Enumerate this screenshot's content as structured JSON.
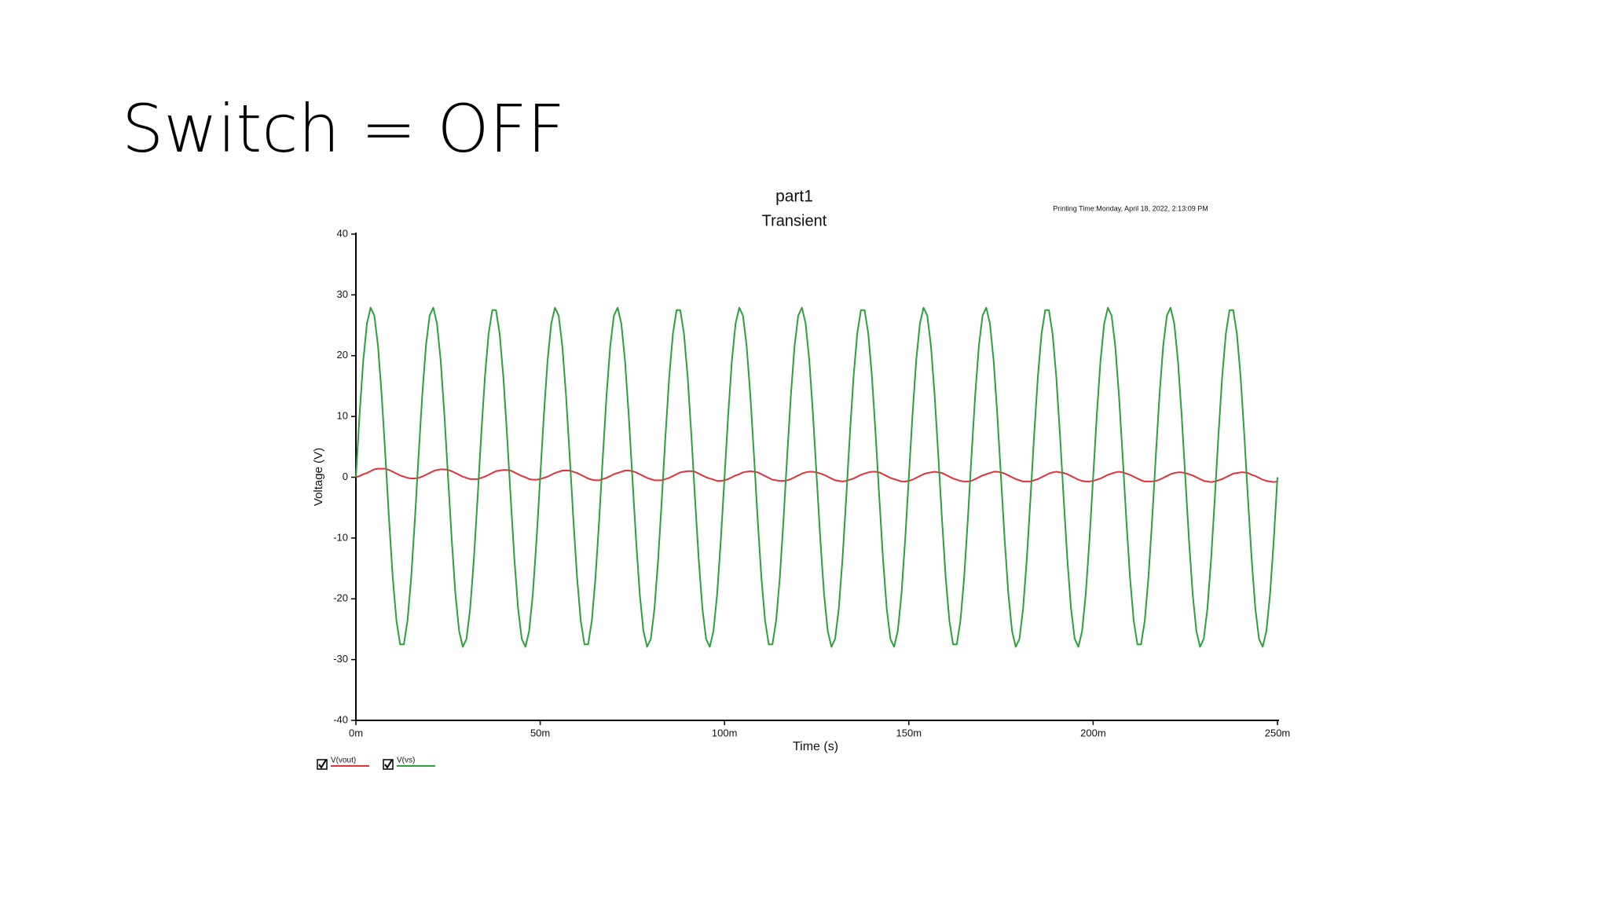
{
  "title": "Switch = OFF",
  "chart_data": {
    "type": "line",
    "title": "part1",
    "subtitle": "Transient",
    "annotation": "Printing Time:Monday, April 18, 2022, 2:13:09 PM",
    "xlabel": "Time (s)",
    "ylabel": "Voltage (V)",
    "x": [
      0,
      0.001,
      0.002,
      0.003,
      0.004,
      0.005,
      0.006,
      0.007,
      0.008,
      0.009,
      0.01,
      0.011,
      0.012,
      0.013,
      0.014,
      0.015,
      0.016,
      0.017,
      0.018,
      0.019,
      0.02,
      0.021,
      0.022,
      0.023,
      0.024,
      0.025,
      0.026,
      0.027,
      0.028,
      0.029,
      0.03,
      0.031,
      0.032,
      0.033,
      0.034,
      0.035,
      0.036,
      0.037,
      0.038,
      0.039,
      0.04,
      0.041,
      0.042,
      0.043,
      0.044,
      0.045,
      0.046,
      0.047,
      0.048,
      0.049,
      0.05,
      0.051,
      0.052,
      0.053,
      0.054,
      0.055,
      0.056,
      0.057,
      0.058,
      0.059,
      0.06,
      0.061,
      0.062,
      0.063,
      0.064,
      0.065,
      0.066,
      0.067,
      0.068,
      0.069,
      0.07,
      0.071,
      0.072,
      0.073,
      0.074,
      0.075,
      0.076,
      0.077,
      0.078,
      0.079,
      0.08,
      0.081,
      0.082,
      0.083,
      0.084,
      0.085,
      0.086,
      0.087,
      0.088,
      0.089,
      0.09,
      0.091,
      0.092,
      0.093,
      0.094,
      0.095,
      0.096,
      0.097,
      0.098,
      0.099,
      0.1,
      0.101,
      0.102,
      0.103,
      0.104,
      0.105,
      0.106,
      0.107,
      0.108,
      0.109,
      0.11,
      0.111,
      0.112,
      0.113,
      0.114,
      0.115,
      0.116,
      0.117,
      0.118,
      0.119,
      0.12,
      0.121,
      0.122,
      0.123,
      0.124,
      0.125,
      0.126,
      0.127,
      0.128,
      0.129,
      0.13,
      0.131,
      0.132,
      0.133,
      0.134,
      0.135,
      0.136,
      0.137,
      0.138,
      0.139,
      0.14,
      0.141,
      0.142,
      0.143,
      0.144,
      0.145,
      0.146,
      0.147,
      0.148,
      0.149,
      0.15,
      0.151,
      0.152,
      0.153,
      0.154,
      0.155,
      0.156,
      0.157,
      0.158,
      0.159,
      0.16,
      0.161,
      0.162,
      0.163,
      0.164,
      0.165,
      0.166,
      0.167,
      0.168,
      0.169,
      0.17,
      0.171,
      0.172,
      0.173,
      0.174,
      0.175,
      0.176,
      0.177,
      0.178,
      0.179,
      0.18,
      0.181,
      0.182,
      0.183,
      0.184,
      0.185,
      0.186,
      0.187,
      0.188,
      0.189,
      0.19,
      0.191,
      0.192,
      0.193,
      0.194,
      0.195,
      0.196,
      0.197,
      0.198,
      0.199,
      0.2,
      0.201,
      0.202,
      0.203,
      0.204,
      0.205,
      0.206,
      0.207,
      0.208,
      0.209,
      0.21,
      0.211,
      0.212,
      0.213,
      0.214,
      0.215,
      0.216,
      0.217,
      0.218,
      0.219,
      0.22,
      0.221,
      0.222,
      0.223,
      0.224,
      0.225,
      0.226,
      0.227,
      0.228,
      0.229,
      0.23,
      0.231,
      0.232,
      0.233,
      0.234,
      0.235,
      0.236,
      0.237,
      0.238,
      0.239,
      0.24,
      0.241,
      0.242,
      0.243,
      0.244,
      0.245,
      0.246,
      0.247,
      0.248,
      0.249,
      0.25
    ],
    "series": [
      {
        "name": "V(vout)",
        "color": "#e0323c",
        "values": [
          0,
          0.2,
          0.5,
          0.7,
          1,
          1.3,
          1.4,
          1.4,
          1.4,
          1.2,
          0.9,
          0.6,
          0.3,
          0.1,
          -0.1,
          -0.2,
          -0.2,
          -0.1,
          0.1,
          0.4,
          0.7,
          1,
          1.2,
          1.3,
          1.3,
          1.2,
          1,
          0.7,
          0.4,
          0.1,
          -0.1,
          -0.3,
          -0.3,
          -0.3,
          -0.1,
          0.1,
          0.4,
          0.7,
          1,
          1.1,
          1.2,
          1.2,
          1.1,
          0.8,
          0.5,
          0.2,
          0,
          -0.3,
          -0.4,
          -0.4,
          -0.3,
          -0.1,
          0.1,
          0.4,
          0.7,
          0.9,
          1.1,
          1.1,
          1.1,
          0.9,
          0.7,
          0.4,
          0.1,
          -0.2,
          -0.4,
          -0.5,
          -0.5,
          -0.3,
          -0.1,
          0.2,
          0.5,
          0.7,
          0.9,
          1.1,
          1.1,
          1,
          0.8,
          0.5,
          0.2,
          -0.1,
          -0.3,
          -0.5,
          -0.5,
          -0.5,
          -0.3,
          -0.1,
          0.2,
          0.5,
          0.8,
          0.9,
          1,
          1,
          0.9,
          0.6,
          0.3,
          0,
          -0.2,
          -0.4,
          -0.6,
          -0.6,
          -0.5,
          -0.3,
          0,
          0.3,
          0.5,
          0.8,
          0.9,
          1,
          0.9,
          0.8,
          0.5,
          0.2,
          -0.1,
          -0.4,
          -0.5,
          -0.6,
          -0.6,
          -0.5,
          -0.3,
          0,
          0.3,
          0.6,
          0.8,
          0.9,
          0.9,
          0.8,
          0.6,
          0.4,
          0.1,
          -0.2,
          -0.5,
          -0.6,
          -0.7,
          -0.6,
          -0.4,
          -0.2,
          0.1,
          0.4,
          0.6,
          0.8,
          0.9,
          0.9,
          0.8,
          0.5,
          0.2,
          -0.1,
          -0.3,
          -0.5,
          -0.7,
          -0.7,
          -0.6,
          -0.4,
          -0.1,
          0.2,
          0.5,
          0.7,
          0.8,
          0.9,
          0.8,
          0.7,
          0.4,
          0.1,
          -0.2,
          -0.4,
          -0.6,
          -0.7,
          -0.7,
          -0.6,
          -0.3,
          0,
          0.3,
          0.5,
          0.7,
          0.9,
          0.9,
          0.8,
          0.6,
          0.3,
          0,
          -0.3,
          -0.5,
          -0.7,
          -0.7,
          -0.7,
          -0.5,
          -0.3,
          0,
          0.3,
          0.6,
          0.8,
          0.9,
          0.8,
          0.7,
          0.5,
          0.2,
          -0.1,
          -0.4,
          -0.6,
          -0.7,
          -0.7,
          -0.6,
          -0.4,
          -0.2,
          0.1,
          0.4,
          0.6,
          0.8,
          0.9,
          0.8,
          0.6,
          0.4,
          0.1,
          -0.2,
          -0.5,
          -0.7,
          -0.7,
          -0.7,
          -0.6,
          -0.4,
          -0.1,
          0.2,
          0.5,
          0.7,
          0.8,
          0.8,
          0.7,
          0.5,
          0.3,
          0,
          -0.3,
          -0.6,
          -0.7,
          -0.8,
          -0.7,
          -0.5,
          -0.3,
          0,
          0.3,
          0.6,
          0.7,
          0.8,
          0.8,
          0.7,
          0.4,
          0.2,
          -0.1,
          -0.4,
          -0.6,
          -0.7,
          -0.8,
          -0.7
        ]
      },
      {
        "name": "V(vs)",
        "color": "#2ca03a",
        "values": [
          0,
          10.3,
          19.2,
          25.3,
          27.9,
          26.6,
          21.6,
          13.5,
          3.5,
          -7,
          -16.5,
          -23.6,
          -27.5,
          -27.5,
          -23.6,
          -16.5,
          -7,
          3.5,
          13.5,
          21.6,
          26.6,
          27.9,
          25.3,
          19.2,
          10.3,
          0,
          -10.3,
          -19.2,
          -25.3,
          -27.9,
          -26.6,
          -21.6,
          -13.5,
          -3.5,
          7,
          16.5,
          23.6,
          27.5,
          27.5,
          23.6,
          16.5,
          7,
          -3.5,
          -13.5,
          -21.6,
          -26.6,
          -27.9,
          -25.3,
          -19.2,
          -10.3,
          0,
          10.3,
          19.2,
          25.3,
          27.9,
          26.6,
          21.6,
          13.5,
          3.5,
          -7,
          -16.5,
          -23.6,
          -27.5,
          -27.5,
          -23.6,
          -16.5,
          -7,
          3.5,
          13.5,
          21.6,
          26.6,
          27.9,
          25.3,
          19.2,
          10.3,
          0,
          -10.3,
          -19.2,
          -25.3,
          -27.9,
          -26.6,
          -21.6,
          -13.5,
          -3.5,
          7,
          16.5,
          23.6,
          27.5,
          27.5,
          23.6,
          16.5,
          7,
          -3.5,
          -13.5,
          -21.6,
          -26.6,
          -27.9,
          -25.3,
          -19.2,
          -10.3,
          0,
          10.3,
          19.2,
          25.3,
          27.9,
          26.6,
          21.6,
          13.5,
          3.5,
          -7,
          -16.5,
          -23.6,
          -27.5,
          -27.5,
          -23.6,
          -16.5,
          -7,
          3.5,
          13.5,
          21.6,
          26.6,
          27.9,
          25.3,
          19.2,
          10.3,
          0,
          -10.3,
          -19.2,
          -25.3,
          -27.9,
          -26.6,
          -21.6,
          -13.5,
          -3.5,
          7,
          16.5,
          23.6,
          27.5,
          27.5,
          23.6,
          16.5,
          7,
          -3.5,
          -13.5,
          -21.6,
          -26.6,
          -27.9,
          -25.3,
          -19.2,
          -10.3,
          0,
          10.3,
          19.2,
          25.3,
          27.9,
          26.6,
          21.6,
          13.5,
          3.5,
          -7,
          -16.5,
          -23.6,
          -27.5,
          -27.5,
          -23.6,
          -16.5,
          -7,
          3.5,
          13.5,
          21.6,
          26.6,
          27.9,
          25.3,
          19.2,
          10.3,
          0,
          -10.3,
          -19.2,
          -25.3,
          -27.9,
          -26.6,
          -21.6,
          -13.5,
          -3.5,
          7,
          16.5,
          23.6,
          27.5,
          27.5,
          23.6,
          16.5,
          7,
          -3.5,
          -13.5,
          -21.6,
          -26.6,
          -27.9,
          -25.3,
          -19.2,
          -10.3,
          0,
          10.3,
          19.2,
          25.3,
          27.9,
          26.6,
          21.6,
          13.5,
          3.5,
          -7,
          -16.5,
          -23.6,
          -27.5,
          -27.5,
          -23.6,
          -16.5,
          -7,
          3.5,
          13.5,
          21.6,
          26.6,
          27.9,
          25.3,
          19.2,
          10.3,
          0,
          -10.3,
          -19.2,
          -25.3,
          -27.9,
          -26.6,
          -21.6,
          -13.5,
          -3.5,
          7,
          16.5,
          23.6,
          27.5,
          27.5,
          23.6,
          16.5,
          7,
          -3.5,
          -13.5,
          -21.6,
          -26.6,
          -27.9,
          -25.3,
          -19.2,
          -10.3,
          0
        ]
      }
    ],
    "xlim": [
      0,
      0.25
    ],
    "ylim": [
      -40,
      40
    ],
    "xticks": [
      {
        "value": 0,
        "label": "0m"
      },
      {
        "value": 0.05,
        "label": "50m"
      },
      {
        "value": 0.1,
        "label": "100m"
      },
      {
        "value": 0.15,
        "label": "150m"
      },
      {
        "value": 0.2,
        "label": "200m"
      },
      {
        "value": 0.25,
        "label": "250m"
      }
    ],
    "yticks": [
      -40,
      -30,
      -20,
      -10,
      0,
      10,
      20,
      30,
      40
    ],
    "grid": false,
    "legend": "bottom-left"
  }
}
